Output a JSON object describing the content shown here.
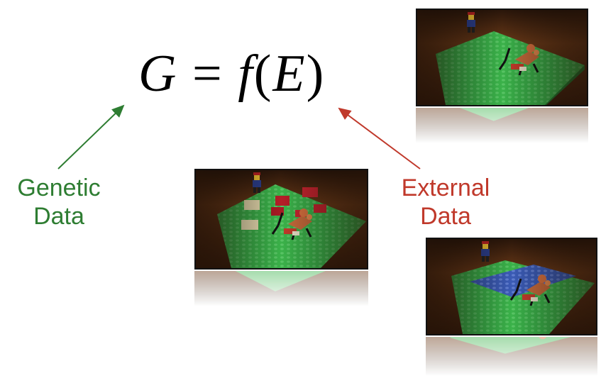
{
  "equation": {
    "lhs": "G",
    "equals": " = ",
    "func": "f",
    "open_paren": "(",
    "arg": "E",
    "close_paren": ")"
  },
  "labels": {
    "genetic": [
      "Genetic",
      "Data"
    ],
    "external": [
      "External",
      "Data"
    ]
  },
  "colors": {
    "genetic": "#2e7d32",
    "external": "#c0392b",
    "table_wood": "#5a2f14",
    "lego_green": "#3bb24a",
    "lego_blue": "#3b5bb5"
  },
  "photos": [
    {
      "name": "lego-baseplate-photo",
      "variant": "plain"
    },
    {
      "name": "lego-blocks-photo",
      "variant": "blocks"
    },
    {
      "name": "lego-water-photo",
      "variant": "water"
    }
  ]
}
